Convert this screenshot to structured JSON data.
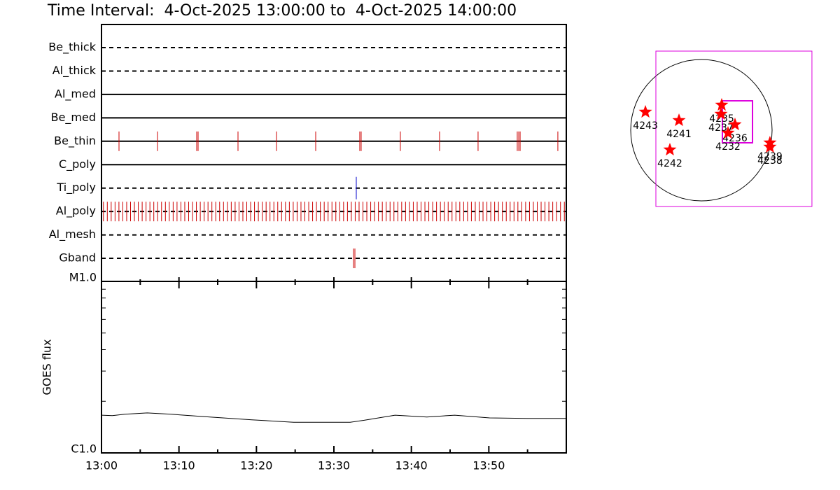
{
  "chart_data": [
    {
      "type": "timeline",
      "title": "Time Interval:  4-Oct-2025 13:00:00 to  4-Oct-2025 14:00:00",
      "xlim": [
        0,
        60
      ],
      "rows": [
        {
          "name": "Be_thick",
          "line_style": "dashed",
          "color": "#cc0000",
          "events": []
        },
        {
          "name": "Al_thick",
          "line_style": "dashed",
          "color": "#cc0000",
          "events": []
        },
        {
          "name": "Al_med",
          "line_style": "solid",
          "color": "#cc0000",
          "events": []
        },
        {
          "name": "Be_med",
          "line_style": "solid",
          "color": "#cc0000",
          "events": []
        },
        {
          "name": "Be_thin",
          "line_style": "solid",
          "color": "#cc0000",
          "events": [
            2.26,
            7.23,
            12.29,
            12.47,
            17.62,
            22.59,
            27.65,
            33.34,
            33.52,
            38.58,
            43.64,
            48.61,
            53.67,
            53.86,
            54.04,
            58.91
          ]
        },
        {
          "name": "C_poly",
          "line_style": "solid",
          "color": "#cc0000",
          "events": []
        },
        {
          "name": "Ti_poly",
          "line_style": "dashed",
          "color": "#0000cc",
          "events": [
            32.89
          ]
        },
        {
          "name": "Al_poly",
          "line_style": "dashed",
          "color": "#cc0000",
          "events": [
            0.25,
            0.75,
            1.25,
            1.75,
            2.25,
            2.75,
            3.25,
            3.75,
            4.25,
            4.75,
            5.25,
            5.75,
            6.25,
            6.75,
            7.25,
            7.75,
            8.25,
            8.75,
            9.25,
            9.75,
            10.25,
            10.75,
            11.25,
            11.75,
            12.25,
            12.75,
            13.25,
            13.75,
            14.25,
            14.75,
            15.25,
            15.75,
            16.25,
            16.75,
            17.25,
            17.75,
            18.25,
            18.75,
            19.25,
            19.75,
            20.25,
            20.75,
            21.25,
            21.75,
            22.25,
            22.75,
            23.25,
            23.75,
            24.25,
            24.75,
            25.25,
            25.75,
            26.25,
            26.75,
            27.25,
            27.75,
            28.25,
            28.75,
            29.25,
            29.75,
            30.25,
            30.75,
            31.25,
            31.75,
            32.25,
            32.75,
            33.25,
            33.75,
            34.25,
            34.75,
            35.25,
            35.75,
            36.25,
            36.75,
            37.25,
            37.75,
            38.25,
            38.75,
            39.25,
            39.75,
            40.25,
            40.75,
            41.25,
            41.75,
            42.25,
            42.75,
            43.25,
            43.75,
            44.25,
            44.75,
            45.25,
            45.75,
            46.25,
            46.75,
            47.25,
            47.75,
            48.25,
            48.75,
            49.25,
            49.75,
            50.25,
            50.75,
            51.25,
            51.75,
            52.25,
            52.75,
            53.25,
            53.75,
            54.25,
            54.75,
            55.25,
            55.75,
            56.25,
            56.75,
            57.25,
            57.75,
            58.25,
            58.75,
            59.25,
            59.75
          ]
        },
        {
          "name": "Al_mesh",
          "line_style": "dashed",
          "color": "#cc0000",
          "events": []
        },
        {
          "name": "Gband",
          "line_style": "dashed",
          "color": "#cc0000",
          "events": [
            32.53,
            32.71
          ]
        }
      ]
    },
    {
      "type": "line",
      "y_label": "GOES flux",
      "log_scale": true,
      "color": "#000000",
      "xlim": [
        0,
        60
      ],
      "xticks": [
        {
          "value": 0,
          "label": "13:00"
        },
        {
          "value": 10,
          "label": "13:10"
        },
        {
          "value": 20,
          "label": "13:20"
        },
        {
          "value": 30,
          "label": "13:30"
        },
        {
          "value": 40,
          "label": "13:40"
        },
        {
          "value": 50,
          "label": "13:50"
        }
      ],
      "xminorticks": [
        5,
        15,
        25,
        35,
        45,
        55
      ],
      "ylim": [
        1e-06,
        1e-05
      ],
      "yticks": [
        {
          "value": 1e-06,
          "label": "C1.0"
        },
        {
          "value": 1e-05,
          "label": "M1.0"
        }
      ],
      "yminorticks": [
        2e-06,
        3e-06,
        4e-06,
        5e-06,
        6e-06,
        7e-06,
        8e-06,
        9e-06
      ],
      "x": [
        0,
        1.4,
        3,
        5.9,
        9,
        14,
        19.4,
        24.8,
        28,
        32.1,
        33.9,
        37.9,
        42,
        45.6,
        50.1,
        55,
        60
      ],
      "values": [
        1.66e-06,
        1.65e-06,
        1.68e-06,
        1.71e-06,
        1.68e-06,
        1.62e-06,
        1.56e-06,
        1.51e-06,
        1.51e-06,
        1.51e-06,
        1.55e-06,
        1.66e-06,
        1.62e-06,
        1.66e-06,
        1.6e-06,
        1.59e-06,
        1.59e-06
      ]
    },
    {
      "type": "map",
      "solar_radius": 960,
      "fov": {
        "xlim": [
          -618,
          1501
        ],
        "ylim": [
          -1036,
          1074
        ],
        "color": "#dd00dd"
      },
      "subfield": {
        "xlim": [
          285,
          694
        ],
        "ylim": [
          -171,
          399
        ],
        "color": "#dd00dd"
      },
      "marker_color": "#ff0000",
      "regions": [
        {
          "name": "4243",
          "x": -760,
          "y": 247
        },
        {
          "name": "4241",
          "x": -304,
          "y": 133
        },
        {
          "name": "4235",
          "x": 276,
          "y": 342
        },
        {
          "name": "4237",
          "x": 266,
          "y": 219
        },
        {
          "name": "4236",
          "x": 456,
          "y": 76
        },
        {
          "name": "4232",
          "x": 361,
          "y": -38
        },
        {
          "name": "4242",
          "x": -428,
          "y": -266
        },
        {
          "name": "4239",
          "x": 931,
          "y": -171
        },
        {
          "name": "4238",
          "x": 931,
          "y": -228
        }
      ]
    }
  ]
}
